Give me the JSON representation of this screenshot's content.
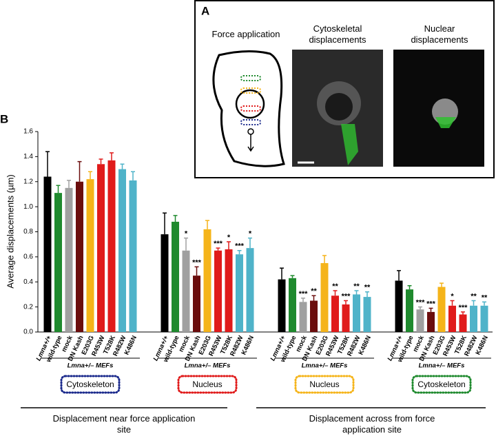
{
  "chart_data": {
    "type": "bar",
    "panel_b_label": "B",
    "y_label": "Average displacements (µm)",
    "ylim": [
      0,
      1.6
    ],
    "yticks": [
      {
        "value": 0,
        "label": "0.0"
      },
      0.2,
      0.4,
      0.6,
      0.8,
      {
        "value": 1,
        "label": "1.0"
      },
      1.2,
      1.4,
      1.6
    ],
    "categories": [
      "Lmna+/+",
      "wild-type",
      "mock",
      "DN Kash",
      "E203G",
      "R453W",
      "T528K",
      "R482W",
      "K486N"
    ],
    "colors": [
      "#000000",
      "#1f8a2e",
      "#a0a0a0",
      "#6b0d0d",
      "#f5b41a",
      "#e01b1b",
      "#e01b1b",
      "#4fb3c9",
      "#4fb3c9"
    ],
    "group_sublabel": "Lmna+/– MEFs",
    "groups": [
      {
        "label": "Cytoskeleton",
        "box_color": "#1b2a8c",
        "values": [
          1.24,
          1.11,
          1.15,
          1.2,
          1.22,
          1.34,
          1.37,
          1.3,
          1.21
        ],
        "errors": [
          0.2,
          0.06,
          0.06,
          0.16,
          0.06,
          0.04,
          0.06,
          0.04,
          0.07
        ],
        "significance": [
          null,
          null,
          null,
          null,
          null,
          null,
          null,
          null,
          null
        ]
      },
      {
        "label": "Nucleus",
        "box_color": "#e01b1b",
        "values": [
          0.78,
          0.88,
          0.65,
          0.45,
          0.82,
          0.65,
          0.66,
          0.62,
          0.67
        ],
        "errors": [
          0.17,
          0.05,
          0.1,
          0.07,
          0.07,
          0.02,
          0.06,
          0.03,
          0.08
        ],
        "significance": [
          null,
          null,
          "*",
          "***",
          null,
          "***",
          "*",
          "***",
          "*"
        ]
      },
      {
        "label": "Nucleus",
        "box_color": "#f5b41a",
        "values": [
          0.42,
          0.43,
          0.24,
          0.25,
          0.55,
          0.29,
          0.22,
          0.3,
          0.28
        ],
        "errors": [
          0.09,
          0.02,
          0.03,
          0.04,
          0.06,
          0.04,
          0.03,
          0.03,
          0.04
        ],
        "significance": [
          null,
          null,
          "***",
          "**",
          null,
          "**",
          "***",
          "**",
          "**"
        ]
      },
      {
        "label": "Cytoskeleton",
        "box_color": "#1f8a2e",
        "values": [
          0.41,
          0.34,
          0.18,
          0.16,
          0.36,
          0.21,
          0.14,
          0.21,
          0.21
        ],
        "errors": [
          0.08,
          0.03,
          0.02,
          0.03,
          0.03,
          0.04,
          0.02,
          0.04,
          0.03
        ],
        "significance": [
          null,
          null,
          "***",
          "***",
          null,
          "*",
          "***",
          "**",
          "**"
        ]
      }
    ],
    "bottom_labels": [
      "Displacement near force application site",
      "Displacement across from force application site"
    ],
    "panel_a": {
      "label": "A",
      "titles": [
        "Force application",
        "Cytoskeletal displacements",
        "Nuclear displacements"
      ]
    }
  }
}
